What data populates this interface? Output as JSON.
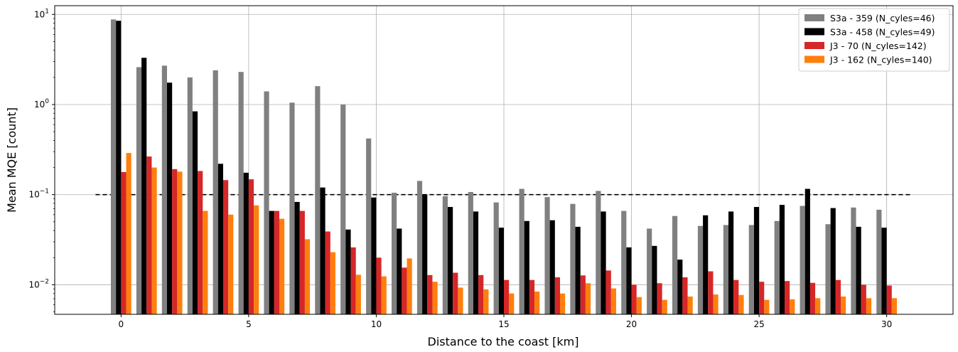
{
  "chart_data": {
    "type": "bar",
    "scale_y": "log",
    "xlabel": "Distance to the coast [km]",
    "ylabel": "Mean MQE [count]",
    "xlim": [
      -2.6,
      32.6
    ],
    "ylim": [
      0.0047,
      12.5
    ],
    "x_ticks": [
      0,
      5,
      10,
      15,
      20,
      25,
      30
    ],
    "y_ticks": [
      {
        "value": 0.01,
        "base": "10",
        "exp": "−2"
      },
      {
        "value": 0.1,
        "base": "10",
        "exp": "−1"
      },
      {
        "value": 1,
        "base": "10",
        "exp": "0"
      },
      {
        "value": 10,
        "base": "10",
        "exp": "1"
      }
    ],
    "grid": true,
    "legend_position": "top-right",
    "threshold_line": {
      "y": 0.1,
      "x_from": -1,
      "x_to": 31,
      "style": "dashed",
      "color": "#000000"
    },
    "bar_offsets": [
      -0.3,
      -0.1,
      0.1,
      0.3
    ],
    "bar_width": 0.2,
    "x": [
      0,
      1,
      2,
      3,
      4,
      5,
      6,
      7,
      8,
      9,
      10,
      11,
      12,
      13,
      14,
      15,
      16,
      17,
      18,
      19,
      20,
      21,
      22,
      23,
      24,
      25,
      26,
      27,
      28,
      29,
      30
    ],
    "series": [
      {
        "name": "S3a - 359 (N_cyles=46)",
        "color": "#808080",
        "values": [
          8.8,
          2.6,
          2.7,
          2.0,
          2.4,
          2.3,
          1.4,
          1.05,
          1.6,
          1.0,
          0.42,
          0.105,
          0.142,
          0.096,
          0.107,
          0.082,
          0.116,
          0.094,
          0.079,
          0.11,
          0.066,
          0.042,
          0.058,
          0.045,
          0.046,
          0.046,
          0.051,
          0.075,
          0.047,
          0.072,
          0.068
        ]
      },
      {
        "name": "S3a - 458 (N_cyles=49)",
        "color": "#000000",
        "values": [
          8.5,
          3.3,
          1.75,
          0.84,
          0.22,
          0.175,
          0.066,
          0.083,
          0.12,
          0.041,
          0.093,
          0.042,
          0.1,
          0.073,
          0.065,
          0.043,
          0.051,
          0.052,
          0.044,
          0.065,
          0.026,
          0.027,
          0.019,
          0.059,
          0.065,
          0.073,
          0.077,
          0.116,
          0.071,
          0.044,
          0.043
        ]
      },
      {
        "name": "J3 - 70 (N_cyles=142)",
        "color": "#d62728",
        "values": [
          0.178,
          0.265,
          0.192,
          0.183,
          0.145,
          0.148,
          0.066,
          0.066,
          0.039,
          0.026,
          0.02,
          0.0155,
          0.0128,
          0.0136,
          0.0128,
          0.0113,
          0.0113,
          0.0121,
          0.0127,
          0.0144,
          0.01,
          0.0104,
          0.0121,
          0.0141,
          0.0113,
          0.0108,
          0.011,
          0.0105,
          0.0113,
          0.01,
          0.0098
        ]
      },
      {
        "name": "J3 - 162 (N_cyles=140)",
        "color": "#ff7f0e",
        "values": [
          0.29,
          0.2,
          0.18,
          0.066,
          0.06,
          0.076,
          0.054,
          0.032,
          0.023,
          0.0129,
          0.0124,
          0.0196,
          0.0108,
          0.0093,
          0.0089,
          0.008,
          0.0084,
          0.008,
          0.0104,
          0.0091,
          0.0073,
          0.0068,
          0.0074,
          0.0078,
          0.0077,
          0.0068,
          0.0069,
          0.0071,
          0.0074,
          0.0071,
          0.0071
        ]
      }
    ]
  }
}
